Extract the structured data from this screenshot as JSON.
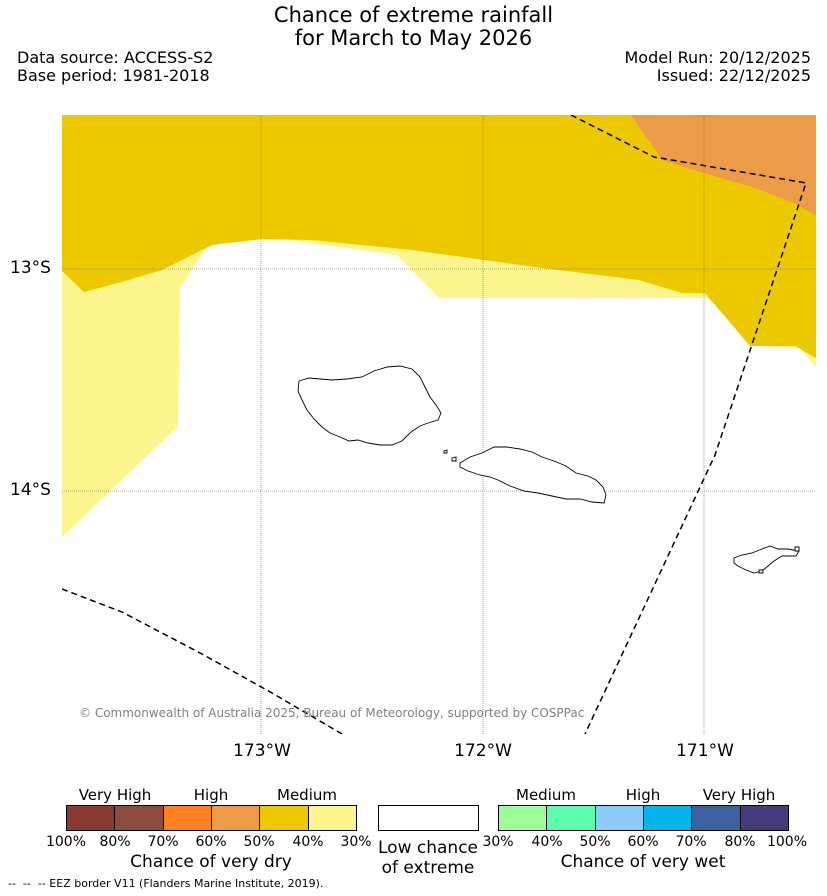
{
  "title_line1": "Chance of extreme rainfall",
  "title_line2": "for March to May 2026",
  "data_source": "Data source: ACCESS-S2",
  "base_period": "Base period: 1981-2018",
  "model_run": "Model Run: 20/12/2025",
  "issued": "Issued: 22/12/2025",
  "copyright": "© Commonwealth of Australia 2025, Bureau of Meteorology, supported by COSPPac",
  "lat_labels": [
    "13°S",
    "14°S"
  ],
  "lon_labels": [
    "173°W",
    "172°W",
    "171°W"
  ],
  "colors": {
    "very_high_dry": [
      "#8b3a32",
      "#8b4c3e"
    ],
    "high_dry": [
      "#ff8020",
      "#ec9c48"
    ],
    "medium_dry": [
      "#ecc800",
      "#fcf48c"
    ],
    "low": "#ffffff",
    "medium_wet": [
      "#9cfc98",
      "#5cfcac"
    ],
    "high_wet": [
      "#8cccfc",
      "#08b4ec"
    ],
    "very_high_wet": [
      "#3c60a0",
      "#443c7c"
    ]
  },
  "legend_dry": {
    "cat_labels": [
      "Very High",
      "High",
      "Medium"
    ],
    "pct_labels": [
      "100%",
      "80%",
      "70%",
      "60%",
      "50%",
      "40%",
      "30%"
    ],
    "caption": "Chance of very dry"
  },
  "legend_low": {
    "line1": "Low chance",
    "line2": "of extreme"
  },
  "legend_wet": {
    "cat_labels": [
      "Medium",
      "High",
      "Very High"
    ],
    "pct_labels": [
      "30%",
      "40%",
      "50%",
      "60%",
      "70%",
      "80%",
      "100%"
    ],
    "caption": "Chance of very wet"
  },
  "footnote": "--  --  -- EEZ border V11 (Flanders Marine Institute, 2019)."
}
